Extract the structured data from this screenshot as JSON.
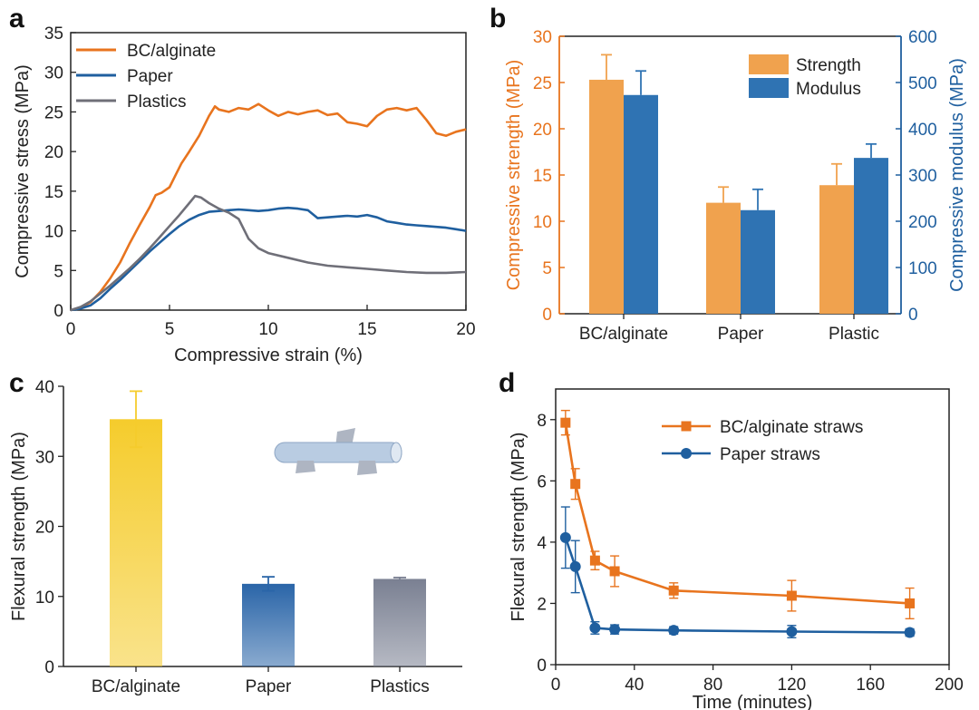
{
  "colors": {
    "orange": "#e8741e",
    "blue": "#1f5f9f",
    "gray": "#6f6f78",
    "orange_bar": "#f0a24e",
    "blue_bar": "#2f73b3",
    "yellow_bar": "#f5cc2c",
    "navy_bar": "#2a65a8",
    "slate_bar": "#7a8092"
  },
  "chart_data": [
    {
      "panel": "a",
      "type": "line",
      "xlabel": "Compressive strain (%)",
      "ylabel": "Compressive stress (MPa)",
      "xlim": [
        0,
        20
      ],
      "ylim": [
        0,
        35
      ],
      "xticks": [
        "0",
        "5",
        "10",
        "15",
        "20"
      ],
      "yticks": [
        "0",
        "5",
        "10",
        "15",
        "20",
        "25",
        "30",
        "35"
      ],
      "legend_position": "top-left",
      "series": [
        {
          "name": "BC/alginate",
          "color": "#e8741e",
          "x": [
            0,
            0.5,
            1,
            1.5,
            2,
            2.5,
            3,
            3.5,
            4,
            4.3,
            4.6,
            5,
            5.3,
            5.6,
            6,
            6.5,
            7,
            7.3,
            7.5,
            8,
            8.5,
            9,
            9.5,
            10,
            10.5,
            11,
            11.5,
            12,
            12.5,
            13,
            13.5,
            14,
            14.5,
            15,
            15.5,
            16,
            16.5,
            17,
            17.5,
            18,
            18.5,
            19,
            19.5,
            20
          ],
          "y": [
            0,
            0.3,
            1.0,
            2.3,
            4.0,
            6.0,
            8.5,
            10.8,
            13.0,
            14.5,
            14.8,
            15.5,
            17.0,
            18.5,
            20.0,
            22.0,
            24.5,
            25.7,
            25.3,
            25.0,
            25.5,
            25.3,
            26.0,
            25.2,
            24.5,
            25.0,
            24.7,
            25.0,
            25.2,
            24.6,
            24.8,
            23.7,
            23.5,
            23.2,
            24.5,
            25.3,
            25.5,
            25.2,
            25.5,
            24.0,
            22.3,
            22.0,
            22.5,
            22.8
          ]
        },
        {
          "name": "Paper",
          "color": "#1f5f9f",
          "x": [
            0,
            0.5,
            1,
            1.5,
            2,
            2.5,
            3,
            3.5,
            4,
            4.5,
            5,
            5.5,
            6,
            6.5,
            7,
            7.5,
            8,
            8.5,
            9,
            9.5,
            10,
            10.5,
            11,
            11.5,
            12,
            12.5,
            13,
            13.5,
            14,
            14.5,
            15,
            15.5,
            16,
            16.5,
            17,
            17.5,
            18,
            18.5,
            19,
            19.5,
            20
          ],
          "y": [
            0,
            0.2,
            0.6,
            1.5,
            2.7,
            3.8,
            5.0,
            6.2,
            7.4,
            8.5,
            9.6,
            10.6,
            11.4,
            12.0,
            12.4,
            12.5,
            12.6,
            12.7,
            12.6,
            12.5,
            12.6,
            12.8,
            12.9,
            12.8,
            12.6,
            11.6,
            11.7,
            11.8,
            11.9,
            11.8,
            12.0,
            11.7,
            11.2,
            11.0,
            10.8,
            10.7,
            10.6,
            10.5,
            10.4,
            10.2,
            10.0
          ]
        },
        {
          "name": "Plastics",
          "color": "#6f6f78",
          "x": [
            0,
            0.5,
            1,
            1.5,
            2,
            2.5,
            3,
            3.5,
            4,
            4.5,
            5,
            5.5,
            6,
            6.3,
            6.6,
            7,
            7.5,
            8,
            8.5,
            9,
            9.5,
            10,
            11,
            12,
            13,
            14,
            15,
            16,
            17,
            18,
            19,
            20
          ],
          "y": [
            0,
            0.4,
            1.1,
            2.1,
            3.1,
            4.2,
            5.3,
            6.5,
            7.8,
            9.2,
            10.6,
            12.0,
            13.5,
            14.4,
            14.2,
            13.5,
            12.8,
            12.3,
            11.5,
            9.0,
            7.8,
            7.2,
            6.6,
            6.0,
            5.6,
            5.4,
            5.2,
            5.0,
            4.8,
            4.7,
            4.7,
            4.8
          ]
        }
      ]
    },
    {
      "panel": "b",
      "type": "bar",
      "categories": [
        "BC/alginate",
        "Paper",
        "Plastic"
      ],
      "ylabel": "Compressive strength (MPa)",
      "y2label": "Compressive modulus (MPa)",
      "ylim": [
        0,
        30
      ],
      "y2lim": [
        0,
        600
      ],
      "yticks": [
        "0",
        "5",
        "10",
        "15",
        "20",
        "25",
        "30"
      ],
      "y2ticks": [
        "0",
        "100",
        "200",
        "300",
        "400",
        "500",
        "600"
      ],
      "legend_position": "top-right",
      "series": [
        {
          "name": "Strength",
          "axis": "left",
          "color": "#f0a24e",
          "values": [
            25.3,
            12.0,
            13.9
          ],
          "errors": [
            2.7,
            1.7,
            2.3
          ]
        },
        {
          "name": "Modulus",
          "axis": "right",
          "color": "#2f73b3",
          "values": [
            473,
            224,
            337
          ],
          "errors": [
            52,
            45,
            30
          ]
        }
      ]
    },
    {
      "panel": "c",
      "type": "bar",
      "categories": [
        "BC/alginate",
        "Paper",
        "Plastics"
      ],
      "ylabel": "Flexural strength (MPa)",
      "ylim": [
        0,
        40
      ],
      "yticks": [
        "0",
        "10",
        "20",
        "30",
        "40"
      ],
      "colors": [
        "#f5cc2c",
        "#2a65a8",
        "#7a8092"
      ],
      "values": [
        35.3,
        11.8,
        12.5
      ],
      "errors": [
        4.0,
        1.0,
        0.2
      ]
    },
    {
      "panel": "d",
      "type": "line",
      "xlabel": "Time (minutes)",
      "ylabel": "Flexural strength (MPa)",
      "xlim": [
        0,
        200
      ],
      "ylim": [
        0,
        9
      ],
      "xticks": [
        "0",
        "40",
        "80",
        "120",
        "160",
        "200"
      ],
      "yticks": [
        "0",
        "2",
        "4",
        "6",
        "8"
      ],
      "legend_position": "top-right",
      "series": [
        {
          "name": "BC/alginate straws",
          "color": "#e8741e",
          "marker": "square",
          "x": [
            5,
            10,
            20,
            30,
            60,
            120,
            180
          ],
          "y": [
            7.9,
            5.9,
            3.4,
            3.05,
            2.42,
            2.25,
            2.0
          ],
          "errors": [
            0.4,
            0.5,
            0.3,
            0.5,
            0.25,
            0.5,
            0.5
          ]
        },
        {
          "name": "Paper straws",
          "color": "#1f5f9f",
          "marker": "circle",
          "x": [
            5,
            10,
            20,
            30,
            60,
            120,
            180
          ],
          "y": [
            4.15,
            3.2,
            1.2,
            1.15,
            1.12,
            1.08,
            1.05
          ],
          "errors": [
            1.0,
            0.85,
            0.2,
            0.15,
            0.12,
            0.2,
            0.12
          ]
        }
      ]
    }
  ],
  "panel_labels": [
    "a",
    "b",
    "c",
    "d"
  ]
}
